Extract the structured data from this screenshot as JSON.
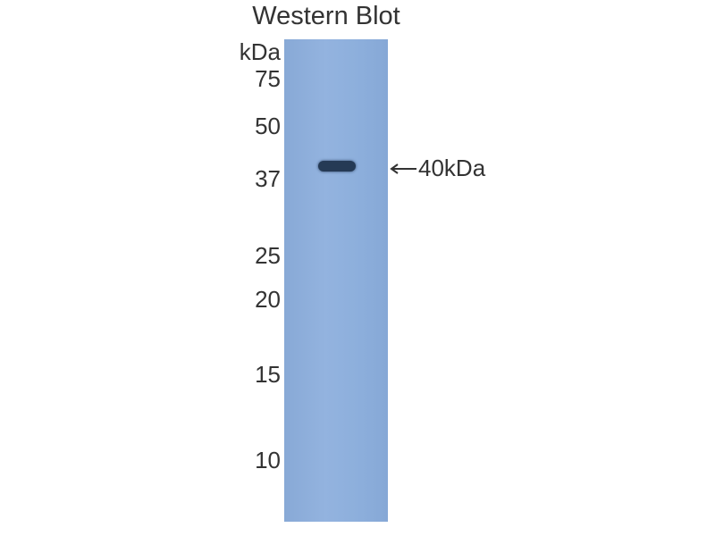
{
  "title": "Western Blot",
  "unit_label": "kDa",
  "markers": [
    "75",
    "50",
    "37",
    "25",
    "20",
    "15",
    "10"
  ],
  "band_label": "40kDa",
  "colors": {
    "membrane": "#8fb0dc",
    "band": "#253a55"
  }
}
